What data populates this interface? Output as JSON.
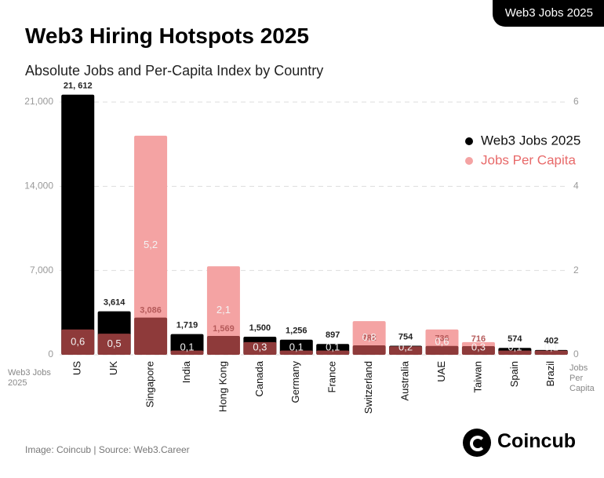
{
  "badge": "Web3 Jobs 2025",
  "source": "Image: Coincub | Source: Web3.Career",
  "brand": "Coincub",
  "chart_data": {
    "type": "bar",
    "title": "Web3 Hiring Hotspots 2025",
    "subtitle": "Absolute Jobs and Per-Capita Index by Country",
    "y_label": "Web3 Jobs 2025",
    "y2_label": "Jobs Per Capita",
    "categories": [
      "US",
      "UK",
      "Singapore",
      "India",
      "Hong Kong",
      "Canada",
      "Germany",
      "France",
      "Switzerland",
      "Australia",
      "UAE",
      "Taiwan",
      "Spain",
      "Brazil"
    ],
    "series": [
      {
        "name": "Web3 Jobs 2025",
        "color": "#000000",
        "values": [
          21612,
          3614,
          3086,
          1719,
          1569,
          1500,
          1256,
          897,
          782,
          754,
          736,
          716,
          574,
          402
        ],
        "value_labels": [
          "21, 612",
          "3,614",
          "3,086",
          "1,719",
          "1,569",
          "1,500",
          "1,256",
          "897",
          "782",
          "754",
          "736",
          "716",
          "574",
          "402"
        ]
      },
      {
        "name": "Jobs Per Capita",
        "color": "#f4a3a3",
        "axis": "y2",
        "values": [
          0.6,
          0.5,
          5.2,
          0.1,
          2.1,
          0.3,
          0.1,
          0.1,
          0.8,
          0.2,
          0.6,
          0.3,
          0.1,
          0.1
        ],
        "value_labels": [
          "0,6",
          "0,5",
          "5,2",
          "0,1",
          "2,1",
          "0,3",
          "0,1",
          "0,1",
          "0,8",
          "0,2",
          "0,6",
          "0,3",
          "0,1",
          "0,1"
        ]
      }
    ],
    "overlap_color": "#8e3a3a",
    "ylim": [
      0,
      21000
    ],
    "yticks": [
      0,
      {
        "value": 7000,
        "label": "7,000"
      },
      {
        "value": 14000,
        "label": "14,000"
      },
      {
        "value": 21000,
        "label": "21,000"
      }
    ],
    "y2lim": [
      0,
      6
    ],
    "y2ticks": [
      0,
      2,
      4,
      6
    ],
    "grid": true,
    "legend": "upper right"
  }
}
